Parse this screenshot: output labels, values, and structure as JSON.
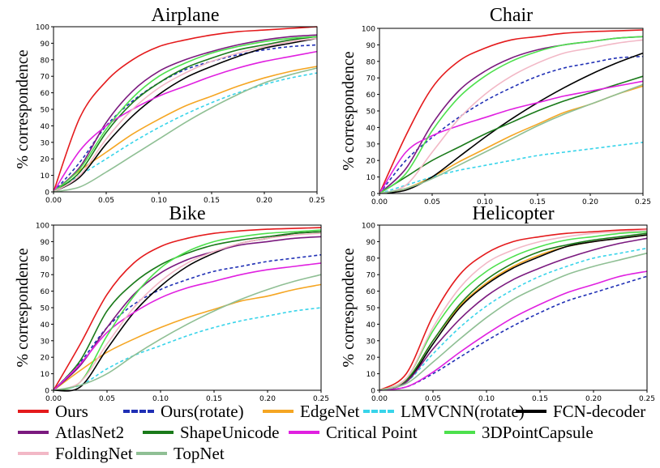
{
  "chart_data": [
    {
      "type": "line",
      "title": "Airplane",
      "xlabel": "",
      "ylabel": "% correspondence",
      "xlim": [
        0,
        0.25
      ],
      "ylim": [
        0,
        100
      ],
      "xticks": [
        "0.00",
        "0.05",
        "0.10",
        "0.15",
        "0.20",
        "0.25"
      ],
      "yticks": [
        "0",
        "10",
        "20",
        "30",
        "40",
        "50",
        "60",
        "70",
        "80",
        "90",
        "100"
      ],
      "x": [
        0,
        0.025,
        0.05,
        0.075,
        0.1,
        0.125,
        0.15,
        0.175,
        0.2,
        0.225,
        0.25
      ],
      "series": [
        {
          "name": "Ours",
          "values": [
            0,
            45,
            67,
            80,
            88,
            92,
            95,
            97,
            98,
            99,
            100
          ]
        },
        {
          "name": "Ours(rotate)",
          "values": [
            0,
            18,
            40,
            55,
            66,
            74,
            79,
            83,
            86,
            88,
            89
          ]
        },
        {
          "name": "EdgeNet",
          "values": [
            0,
            13,
            24,
            35,
            44,
            52,
            58,
            64,
            69,
            73,
            76
          ]
        },
        {
          "name": "LMVCNN(rotate)",
          "values": [
            0,
            10,
            20,
            30,
            39,
            47,
            54,
            60,
            65,
            69,
            72
          ]
        },
        {
          "name": "FCN-decoder",
          "values": [
            0,
            9,
            29,
            46,
            59,
            69,
            76,
            82,
            87,
            90,
            93
          ]
        },
        {
          "name": "AtlasNet2",
          "values": [
            0,
            15,
            42,
            61,
            73,
            80,
            85,
            89,
            92,
            94,
            95
          ]
        },
        {
          "name": "ShapeUnicode",
          "values": [
            0,
            12,
            36,
            54,
            66,
            75,
            81,
            86,
            89,
            92,
            94
          ]
        },
        {
          "name": "Critical Point",
          "values": [
            0,
            25,
            40,
            50,
            58,
            64,
            70,
            75,
            79,
            82,
            85
          ]
        },
        {
          "name": "3DPointCapsule",
          "values": [
            0,
            14,
            38,
            57,
            70,
            78,
            84,
            88,
            91,
            93,
            94
          ]
        },
        {
          "name": "FoldingNet",
          "values": [
            0,
            10,
            32,
            50,
            63,
            72,
            79,
            84,
            88,
            91,
            93
          ]
        },
        {
          "name": "TopNet",
          "values": [
            0,
            3,
            12,
            22,
            32,
            42,
            51,
            59,
            66,
            71,
            75
          ]
        }
      ]
    },
    {
      "type": "line",
      "title": "Chair",
      "xlabel": "",
      "ylabel": "% correspondence",
      "xlim": [
        0,
        0.25
      ],
      "ylim": [
        0,
        100
      ],
      "xticks": [
        "0.00",
        "0.05",
        "0.10",
        "0.15",
        "0.20",
        "0.25"
      ],
      "yticks": [
        "0",
        "10",
        "20",
        "30",
        "40",
        "50",
        "60",
        "70",
        "80",
        "90",
        "100"
      ],
      "x": [
        0,
        0.025,
        0.05,
        0.075,
        0.1,
        0.125,
        0.15,
        0.175,
        0.2,
        0.225,
        0.25
      ],
      "series": [
        {
          "name": "Ours",
          "values": [
            0,
            35,
            64,
            80,
            88,
            93,
            95,
            97,
            98,
            98.5,
            99
          ]
        },
        {
          "name": "Ours(rotate)",
          "values": [
            0,
            20,
            34,
            46,
            56,
            64,
            71,
            76,
            79,
            82,
            83
          ]
        },
        {
          "name": "EdgeNet",
          "values": [
            0,
            3,
            10,
            19,
            27,
            35,
            42,
            49,
            54,
            60,
            65
          ]
        },
        {
          "name": "LMVCNN(rotate)",
          "values": [
            0,
            5,
            10,
            14,
            17,
            20,
            23,
            25,
            27,
            29,
            31
          ]
        },
        {
          "name": "FCN-decoder",
          "values": [
            0,
            2,
            10,
            22,
            34,
            45,
            55,
            64,
            72,
            79,
            85
          ]
        },
        {
          "name": "AtlasNet2",
          "values": [
            0,
            15,
            42,
            62,
            74,
            82,
            87,
            90,
            92,
            94,
            95
          ]
        },
        {
          "name": "ShapeUnicode",
          "values": [
            0,
            10,
            20,
            28,
            36,
            43,
            50,
            56,
            61,
            66,
            71
          ]
        },
        {
          "name": "Critical Point",
          "values": [
            0,
            25,
            35,
            41,
            46,
            51,
            55,
            59,
            62,
            65,
            68
          ]
        },
        {
          "name": "3DPointCapsule",
          "values": [
            0,
            12,
            38,
            58,
            71,
            80,
            86,
            90,
            92,
            94,
            95
          ]
        },
        {
          "name": "FoldingNet",
          "values": [
            0,
            5,
            25,
            45,
            60,
            71,
            79,
            85,
            88,
            91,
            93
          ]
        },
        {
          "name": "TopNet",
          "values": [
            0,
            3,
            9,
            17,
            25,
            33,
            41,
            48,
            54,
            60,
            66
          ]
        }
      ]
    },
    {
      "type": "line",
      "title": "Bike",
      "xlabel": "",
      "ylabel": "% correspondence",
      "xlim": [
        0,
        0.25
      ],
      "ylim": [
        0,
        100
      ],
      "xticks": [
        "0.00",
        "0.05",
        "0.10",
        "0.15",
        "0.20",
        "0.25"
      ],
      "yticks": [
        "0",
        "10",
        "20",
        "30",
        "40",
        "50",
        "60",
        "70",
        "80",
        "90",
        "100"
      ],
      "x": [
        0,
        0.025,
        0.05,
        0.075,
        0.1,
        0.125,
        0.15,
        0.175,
        0.2,
        0.225,
        0.25
      ],
      "series": [
        {
          "name": "Ours",
          "values": [
            0,
            28,
            58,
            77,
            87,
            92,
            95,
            96.5,
            97.5,
            98,
            98.5
          ]
        },
        {
          "name": "Ours(rotate)",
          "values": [
            0,
            17,
            38,
            52,
            61,
            67,
            72,
            75,
            78,
            80,
            82
          ]
        },
        {
          "name": "EdgeNet",
          "values": [
            0,
            12,
            23,
            31,
            38,
            44,
            49,
            54,
            57,
            61,
            64
          ]
        },
        {
          "name": "LMVCNN(rotate)",
          "values": [
            0,
            3,
            13,
            21,
            27,
            33,
            38,
            42,
            45,
            48,
            50
          ]
        },
        {
          "name": "FCN-decoder",
          "values": [
            0,
            2,
            25,
            47,
            63,
            75,
            83,
            89,
            92,
            95,
            96
          ]
        },
        {
          "name": "AtlasNet2",
          "values": [
            0,
            15,
            38,
            58,
            71,
            79,
            84,
            88,
            90,
            92,
            93
          ]
        },
        {
          "name": "ShapeUnicode",
          "values": [
            0,
            18,
            48,
            65,
            76,
            83,
            88,
            91,
            93,
            95,
            96
          ]
        },
        {
          "name": "Critical Point",
          "values": [
            0,
            16,
            35,
            47,
            56,
            62,
            66,
            70,
            73,
            75,
            77
          ]
        },
        {
          "name": "3DPointCapsule",
          "values": [
            0,
            5,
            33,
            57,
            74,
            84,
            90,
            93,
            95,
            96,
            97
          ]
        },
        {
          "name": "FoldingNet",
          "values": [
            0,
            5,
            28,
            50,
            66,
            77,
            84,
            89,
            92,
            94,
            95
          ]
        },
        {
          "name": "TopNet",
          "values": [
            0,
            3,
            10,
            21,
            31,
            40,
            48,
            55,
            61,
            66,
            70
          ]
        }
      ]
    },
    {
      "type": "line",
      "title": "Helicopter",
      "xlabel": "",
      "ylabel": "% correspondence",
      "xlim": [
        0,
        0.25
      ],
      "ylim": [
        0,
        100
      ],
      "xticks": [
        "0.00",
        "0.05",
        "0.10",
        "0.15",
        "0.20",
        "0.25"
      ],
      "yticks": [
        "0",
        "10",
        "20",
        "30",
        "40",
        "50",
        "60",
        "70",
        "80",
        "90",
        "100"
      ],
      "x": [
        0,
        0.025,
        0.05,
        0.075,
        0.1,
        0.125,
        0.15,
        0.175,
        0.2,
        0.225,
        0.25
      ],
      "series": [
        {
          "name": "Ours",
          "values": [
            0,
            10,
            45,
            70,
            83,
            90,
            93,
            95,
            96,
            97,
            97.5
          ]
        },
        {
          "name": "Ours(rotate)",
          "values": [
            0,
            2,
            10,
            20,
            30,
            39,
            47,
            54,
            59,
            64,
            69
          ]
        },
        {
          "name": "EdgeNet",
          "values": [
            0,
            6,
            30,
            51,
            65,
            75,
            82,
            87,
            90,
            92,
            94
          ]
        },
        {
          "name": "LMVCNN(rotate)",
          "values": [
            0,
            5,
            22,
            38,
            51,
            61,
            69,
            75,
            80,
            83,
            86
          ]
        },
        {
          "name": "FCN-decoder",
          "values": [
            0,
            5,
            28,
            50,
            64,
            74,
            81,
            87,
            90,
            92,
            94
          ]
        },
        {
          "name": "AtlasNet2",
          "values": [
            0,
            5,
            25,
            43,
            57,
            67,
            74,
            80,
            85,
            89,
            92
          ]
        },
        {
          "name": "ShapeUnicode",
          "values": [
            0,
            6,
            30,
            52,
            67,
            77,
            84,
            88,
            91,
            93,
            95
          ]
        },
        {
          "name": "Critical Point",
          "values": [
            0,
            2,
            11,
            23,
            34,
            44,
            52,
            59,
            64,
            69,
            72
          ]
        },
        {
          "name": "3DPointCapsule",
          "values": [
            0,
            7,
            36,
            58,
            72,
            81,
            87,
            91,
            93,
            95,
            96
          ]
        },
        {
          "name": "FoldingNet",
          "values": [
            0,
            7,
            38,
            62,
            77,
            85,
            90,
            93,
            95,
            96,
            97
          ]
        },
        {
          "name": "TopNet",
          "values": [
            0,
            4,
            17,
            31,
            44,
            55,
            63,
            70,
            75,
            79,
            83
          ]
        }
      ]
    }
  ],
  "legend": [
    {
      "name": "Ours",
      "color": "#e41a1c",
      "dashed": false
    },
    {
      "name": "Ours(rotate)",
      "color": "#1f2fb5",
      "dashed": true
    },
    {
      "name": "EdgeNet",
      "color": "#f5a623",
      "dashed": false
    },
    {
      "name": "LMVCNN(rotate)",
      "color": "#38d4ea",
      "dashed": true
    },
    {
      "name": "FCN-decoder",
      "color": "#000000",
      "dashed": false
    },
    {
      "name": "AtlasNet2",
      "color": "#7b1a7f",
      "dashed": false
    },
    {
      "name": "ShapeUnicode",
      "color": "#1a7a1a",
      "dashed": false
    },
    {
      "name": "Critical Point",
      "color": "#e020e0",
      "dashed": false
    },
    {
      "name": "3DPointCapsule",
      "color": "#4de04d",
      "dashed": false
    },
    {
      "name": "FoldingNet",
      "color": "#f2b8c6",
      "dashed": false
    },
    {
      "name": "TopNet",
      "color": "#8fbf94",
      "dashed": false
    }
  ]
}
